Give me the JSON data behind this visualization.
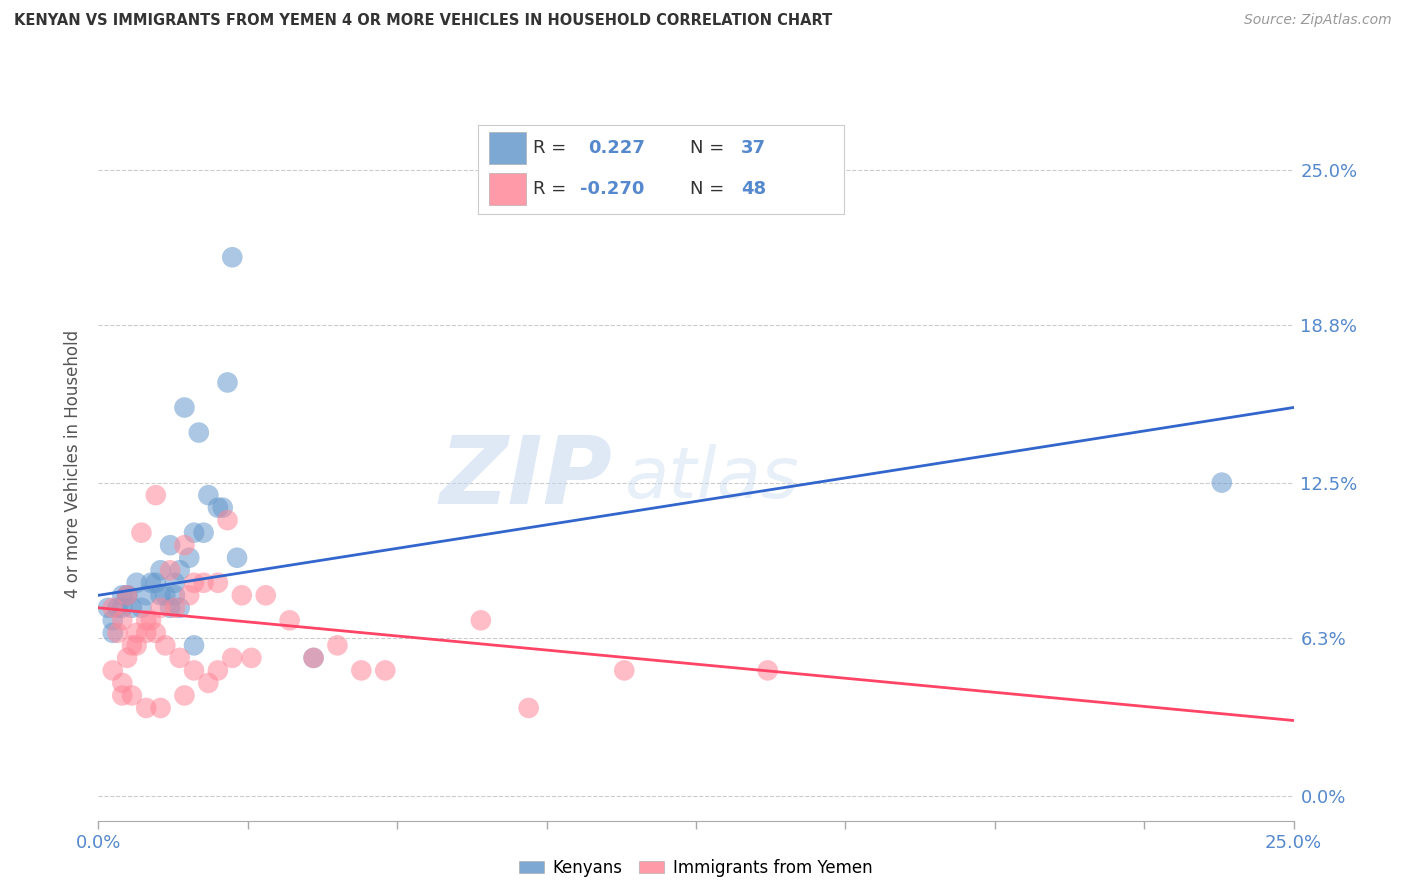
{
  "title": "KENYAN VS IMMIGRANTS FROM YEMEN 4 OR MORE VEHICLES IN HOUSEHOLD CORRELATION CHART",
  "source": "Source: ZipAtlas.com",
  "ylabel_label": "4 or more Vehicles in Household",
  "ylabel_values": [
    0.0,
    6.3,
    12.5,
    18.8,
    25.0
  ],
  "xlim": [
    0.0,
    25.0
  ],
  "ylim": [
    -1.0,
    27.5
  ],
  "legend_r_kenyan": "R =  0.227",
  "legend_n_kenyan": "N = 37",
  "legend_r_yemen": "R = -0.270",
  "legend_n_yemen": "N = 48",
  "color_kenyan": "#6699CC",
  "color_yemen": "#FF8899",
  "color_kenyan_line": "#3366CC",
  "color_yemen_line": "#FF4466",
  "color_axis_ticks": "#5588CC",
  "watermark_zip": "ZIP",
  "watermark_atlas": "atlas",
  "kenyan_x": [
    1.2,
    2.1,
    2.8,
    1.8,
    1.5,
    1.7,
    2.0,
    2.5,
    2.3,
    1.6,
    1.4,
    0.5,
    0.8,
    1.0,
    0.9,
    1.3,
    1.1,
    1.9,
    2.2,
    0.6,
    0.7,
    2.7,
    2.6,
    1.6,
    1.3,
    0.4,
    0.3,
    2.0,
    4.5,
    2.9,
    1.5,
    1.7,
    0.2,
    0.3,
    0.5,
    0.6,
    23.5
  ],
  "kenyan_y": [
    8.5,
    14.5,
    21.5,
    15.5,
    10.0,
    9.0,
    10.5,
    11.5,
    12.0,
    8.5,
    8.0,
    8.0,
    8.5,
    8.0,
    7.5,
    9.0,
    8.5,
    9.5,
    10.5,
    8.0,
    7.5,
    16.5,
    11.5,
    8.0,
    8.0,
    7.5,
    6.5,
    6.0,
    5.5,
    9.5,
    7.5,
    7.5,
    7.5,
    7.0,
    7.5,
    8.0,
    12.5
  ],
  "yemen_x": [
    0.3,
    0.5,
    0.8,
    1.0,
    1.2,
    0.6,
    0.9,
    1.5,
    1.8,
    2.0,
    2.5,
    3.0,
    0.4,
    0.7,
    1.1,
    1.3,
    1.6,
    1.9,
    2.2,
    2.7,
    3.5,
    4.0,
    5.0,
    6.0,
    0.5,
    0.6,
    0.8,
    1.0,
    1.2,
    1.4,
    1.7,
    2.0,
    2.3,
    2.5,
    2.8,
    3.2,
    4.5,
    5.5,
    8.0,
    9.0,
    11.0,
    14.0,
    0.3,
    0.5,
    0.7,
    1.0,
    1.3,
    1.8
  ],
  "yemen_y": [
    7.5,
    7.0,
    6.5,
    7.0,
    12.0,
    8.0,
    10.5,
    9.0,
    10.0,
    8.5,
    8.5,
    8.0,
    6.5,
    6.0,
    7.0,
    7.5,
    7.5,
    8.0,
    8.5,
    11.0,
    8.0,
    7.0,
    6.0,
    5.0,
    4.0,
    5.5,
    6.0,
    6.5,
    6.5,
    6.0,
    5.5,
    5.0,
    4.5,
    5.0,
    5.5,
    5.5,
    5.5,
    5.0,
    7.0,
    3.5,
    5.0,
    5.0,
    5.0,
    4.5,
    4.0,
    3.5,
    3.5,
    4.0
  ]
}
